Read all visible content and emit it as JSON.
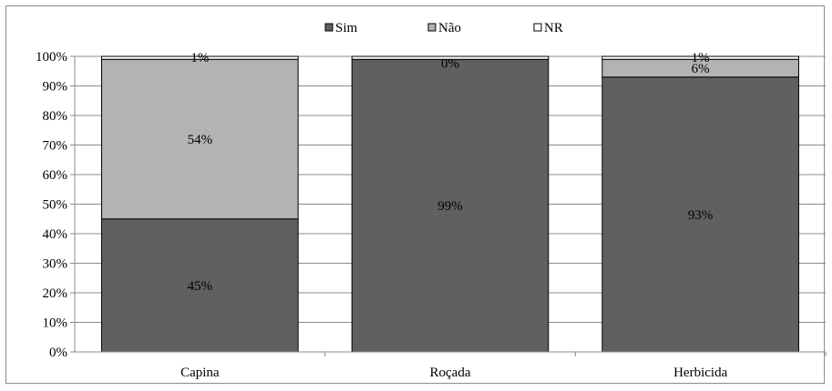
{
  "chart_data": {
    "type": "bar",
    "stacked": true,
    "percent": true,
    "categories": [
      "Capina",
      "Roçada",
      "Herbicida"
    ],
    "series": [
      {
        "name": "Sim",
        "color": "#606060",
        "values": [
          45,
          99,
          93
        ],
        "labels": [
          "45%",
          "99%",
          "93%"
        ]
      },
      {
        "name": "Não",
        "color": "#b3b3b3",
        "values": [
          54,
          0,
          6
        ],
        "labels": [
          "54%",
          "0%",
          "6%"
        ]
      },
      {
        "name": "NR",
        "color": "#ffffff",
        "values": [
          1,
          1,
          1
        ],
        "labels": [
          "1%",
          "",
          "1%"
        ]
      }
    ],
    "yticks": [
      "0%",
      "10%",
      "20%",
      "30%",
      "40%",
      "50%",
      "60%",
      "70%",
      "80%",
      "90%",
      "100%"
    ],
    "ylim": [
      0,
      100
    ],
    "grid": true,
    "legend_position": "top-center"
  }
}
